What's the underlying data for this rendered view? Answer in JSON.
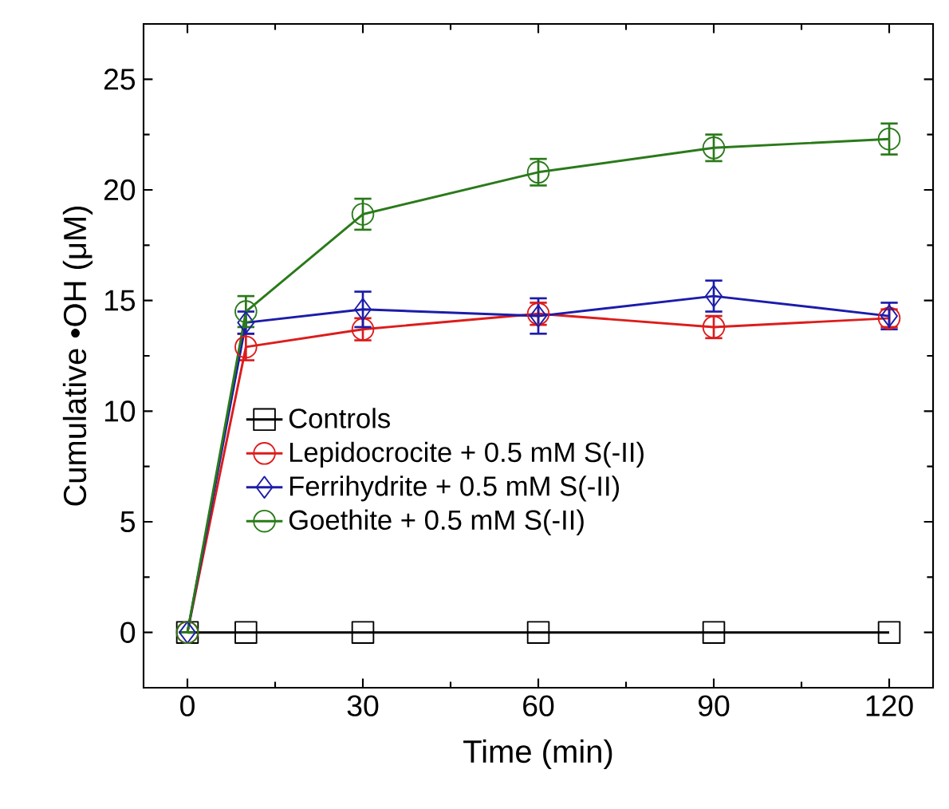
{
  "chart_data": {
    "type": "line",
    "xlabel": "Time (min)",
    "ylabel": "Cumulative •OH (μM)",
    "x": [
      0,
      10,
      30,
      60,
      90,
      120
    ],
    "xlim": [
      -7.5,
      127.5
    ],
    "xticks": [
      0,
      30,
      60,
      90,
      120
    ],
    "ylim": [
      -2.5,
      27.5
    ],
    "yticks": [
      0,
      5,
      10,
      15,
      20,
      25
    ],
    "legend": "center",
    "grid": false,
    "series": [
      {
        "name": "Controls",
        "color": "#000000",
        "marker": "square",
        "values": [
          0,
          0,
          0,
          0,
          0,
          0
        ]
      },
      {
        "name": "Lepidocrocite + 0.5 mM S(-II)",
        "color": "#dd1c1c",
        "marker": "circle",
        "values": [
          0,
          12.9,
          13.7,
          14.4,
          13.8,
          14.2
        ],
        "errors": [
          null,
          0.6,
          0.5,
          0.5,
          0.5,
          0.4
        ]
      },
      {
        "name": "Ferrihydrite + 0.5 mM S(-II)",
        "color": "#1c1caa",
        "marker": "diamond",
        "values": [
          0,
          14.0,
          14.6,
          14.3,
          15.2,
          14.3
        ],
        "errors": [
          null,
          0.5,
          0.8,
          0.8,
          0.7,
          0.6
        ]
      },
      {
        "name": "Goethite + 0.5 mM S(-II)",
        "color": "#2a7a1a",
        "marker": "circle",
        "values": [
          0,
          14.5,
          18.9,
          20.8,
          21.9,
          22.3
        ],
        "errors": [
          null,
          0.7,
          0.7,
          0.6,
          0.6,
          0.7
        ]
      }
    ]
  }
}
